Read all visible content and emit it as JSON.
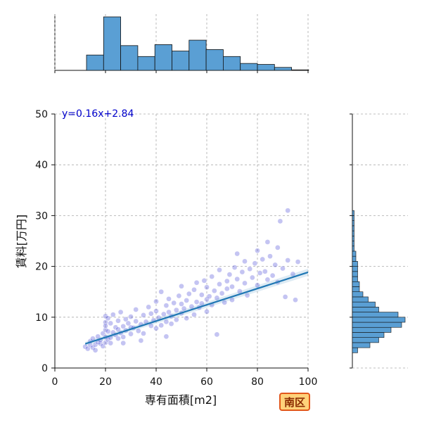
{
  "chart_data": {
    "type": "scatter",
    "xlabel": "専有面積[m2]",
    "ylabel": "賃料[万円]",
    "xlim": [
      0,
      100
    ],
    "ylim": [
      0,
      50
    ],
    "x_ticks": [
      0,
      20,
      40,
      60,
      80,
      100
    ],
    "y_ticks": [
      0,
      10,
      20,
      30,
      40,
      50
    ],
    "grid": true,
    "regression": {
      "label": "y=0.16x+2.84",
      "slope": 0.16,
      "intercept": 2.84,
      "x_range": [
        12,
        100
      ]
    },
    "points": [
      [
        12,
        4.2
      ],
      [
        13,
        3.8
      ],
      [
        14,
        4.5
      ],
      [
        14,
        5.3
      ],
      [
        15,
        4.0
      ],
      [
        15,
        5.8
      ],
      [
        16,
        4.6
      ],
      [
        16,
        3.5
      ],
      [
        17,
        5.1
      ],
      [
        17,
        6.2
      ],
      [
        18,
        4.8
      ],
      [
        18,
        5.5
      ],
      [
        19,
        4.3
      ],
      [
        19,
        6.8
      ],
      [
        20,
        5.0
      ],
      [
        20,
        7.5
      ],
      [
        20,
        9.0
      ],
      [
        20,
        10.2
      ],
      [
        20,
        6.1
      ],
      [
        20,
        8.3
      ],
      [
        21,
        5.6
      ],
      [
        21,
        9.8
      ],
      [
        21,
        7.2
      ],
      [
        22,
        6.0
      ],
      [
        22,
        8.8
      ],
      [
        22,
        4.9
      ],
      [
        23,
        7.0
      ],
      [
        23,
        10.5
      ],
      [
        24,
        6.5
      ],
      [
        24,
        8.0
      ],
      [
        25,
        5.8
      ],
      [
        25,
        9.3
      ],
      [
        25,
        7.6
      ],
      [
        26,
        6.9
      ],
      [
        26,
        11.0
      ],
      [
        27,
        8.2
      ],
      [
        27,
        6.1
      ],
      [
        28,
        7.4
      ],
      [
        28,
        9.6
      ],
      [
        29,
        8.8
      ],
      [
        30,
        6.7
      ],
      [
        30,
        10.1
      ],
      [
        30,
        8.0
      ],
      [
        31,
        7.9
      ],
      [
        32,
        9.2
      ],
      [
        32,
        11.5
      ],
      [
        33,
        7.3
      ],
      [
        34,
        8.6
      ],
      [
        35,
        10.4
      ],
      [
        35,
        6.8
      ],
      [
        36,
        9.1
      ],
      [
        37,
        12.0
      ],
      [
        38,
        8.3
      ],
      [
        38,
        10.7
      ],
      [
        39,
        9.4
      ],
      [
        40,
        7.8
      ],
      [
        40,
        11.2
      ],
      [
        40,
        13.1
      ],
      [
        41,
        9.9
      ],
      [
        42,
        8.4
      ],
      [
        42,
        15.0
      ],
      [
        43,
        10.6
      ],
      [
        44,
        12.3
      ],
      [
        44,
        9.1
      ],
      [
        45,
        11.0
      ],
      [
        45,
        13.6
      ],
      [
        46,
        8.7
      ],
      [
        46,
        10.2
      ],
      [
        47,
        12.8
      ],
      [
        48,
        11.4
      ],
      [
        48,
        9.5
      ],
      [
        49,
        14.2
      ],
      [
        50,
        10.8
      ],
      [
        50,
        12.6
      ],
      [
        50,
        16.1
      ],
      [
        51,
        11.7
      ],
      [
        52,
        13.3
      ],
      [
        52,
        9.8
      ],
      [
        53,
        14.6
      ],
      [
        54,
        12.1
      ],
      [
        55,
        10.5
      ],
      [
        55,
        15.4
      ],
      [
        56,
        13.0
      ],
      [
        56,
        16.8
      ],
      [
        57,
        11.9
      ],
      [
        58,
        14.4
      ],
      [
        58,
        12.7
      ],
      [
        59,
        17.2
      ],
      [
        60,
        13.5
      ],
      [
        60,
        11.1
      ],
      [
        60,
        15.9
      ],
      [
        61,
        14.1
      ],
      [
        62,
        12.4
      ],
      [
        62,
        18.0
      ],
      [
        63,
        15.2
      ],
      [
        64,
        13.8
      ],
      [
        65,
        16.5
      ],
      [
        65,
        19.3
      ],
      [
        66,
        14.7
      ],
      [
        67,
        12.9
      ],
      [
        68,
        17.1
      ],
      [
        68,
        15.6
      ],
      [
        69,
        18.4
      ],
      [
        70,
        16.0
      ],
      [
        70,
        13.4
      ],
      [
        71,
        19.8
      ],
      [
        72,
        17.5
      ],
      [
        72,
        22.5
      ],
      [
        73,
        15.1
      ],
      [
        74,
        18.9
      ],
      [
        75,
        16.7
      ],
      [
        75,
        21.0
      ],
      [
        76,
        14.3
      ],
      [
        77,
        19.5
      ],
      [
        78,
        17.8
      ],
      [
        79,
        20.6
      ],
      [
        80,
        16.3
      ],
      [
        80,
        23.1
      ],
      [
        81,
        18.7
      ],
      [
        82,
        21.4
      ],
      [
        83,
        19.0
      ],
      [
        84,
        17.4
      ],
      [
        84,
        24.8
      ],
      [
        85,
        22.0
      ],
      [
        86,
        18.2
      ],
      [
        87,
        20.3
      ],
      [
        88,
        16.9
      ],
      [
        88,
        23.7
      ],
      [
        89,
        28.9
      ],
      [
        90,
        19.6
      ],
      [
        91,
        14.0
      ],
      [
        92,
        31.0
      ],
      [
        92,
        21.2
      ],
      [
        94,
        18.5
      ],
      [
        95,
        13.4
      ],
      [
        96,
        20.9
      ],
      [
        64,
        6.6
      ],
      [
        44,
        6.2
      ],
      [
        34,
        5.4
      ],
      [
        27,
        4.9
      ]
    ],
    "x_hist": {
      "bin_edges": [
        12.5,
        19.25,
        26,
        32.75,
        39.5,
        46.25,
        53,
        59.75,
        66.5,
        73.25,
        80,
        86.75,
        93.5,
        100.25
      ],
      "counts": [
        31,
        108,
        50,
        28,
        52,
        39,
        61,
        42,
        28,
        14,
        12,
        6,
        1
      ]
    },
    "y_hist": {
      "bin_edges": [
        3,
        4,
        5,
        6,
        7,
        8,
        9,
        10,
        11,
        12,
        13,
        14,
        15,
        16,
        17,
        18,
        19,
        20,
        21,
        22,
        23,
        24,
        25,
        26,
        27,
        28,
        29,
        30,
        31
      ],
      "counts": [
        3,
        10,
        15,
        18,
        22,
        28,
        30,
        26,
        15,
        13,
        9,
        6,
        4,
        4,
        3,
        3,
        3,
        3,
        2,
        2,
        1,
        1,
        1,
        1,
        1,
        1,
        1,
        1
      ]
    },
    "colors": {
      "points": "#2a2ad0",
      "regression": "#1f77b4",
      "hist_fill": "#5a9fd4",
      "hist_edge": "#111111",
      "grid": "#aaaaaa",
      "label_text": "#0000cc"
    }
  },
  "badge": {
    "text": "南区",
    "fill": "#ffd27a",
    "border": "#e2571b"
  }
}
